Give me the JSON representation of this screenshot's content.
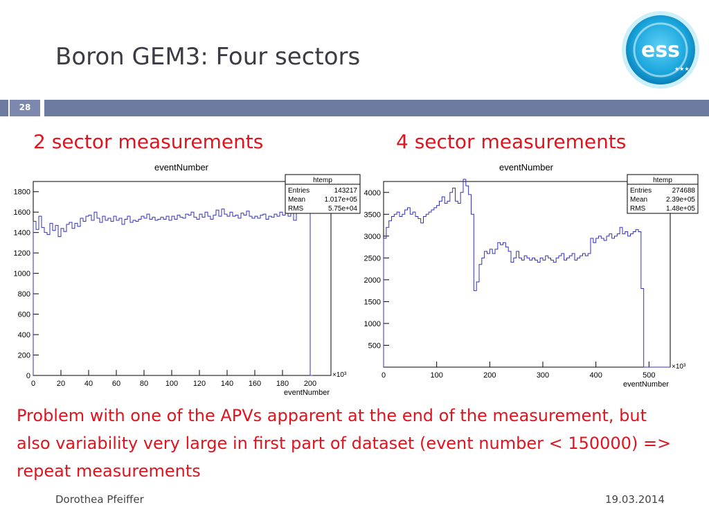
{
  "slide": {
    "title": "Boron GEM3: Four sectors",
    "number": "28",
    "left_heading": "2 sector measurements",
    "right_heading": "4 sector measurements",
    "note": "Problem with one of the APVs apparent at the end of the measurement, but also variability very large in first part of dataset (event number < 150000) => repeat measurements",
    "author": "Dorothea Pfeiffer",
    "date": "19.03.2014",
    "colors": {
      "title": "#3b3b45",
      "heading": "#e0141e",
      "bar": "#6e7ba0",
      "hist": "#3030c0"
    },
    "logo_icon": "ess-logo-icon"
  },
  "chart_data": [
    {
      "type": "histogram",
      "title": "eventNumber",
      "xlabel": "eventNumber",
      "x_multiplier": "×10³",
      "xlim": [
        0,
        215
      ],
      "ylim": [
        0,
        1900
      ],
      "xticks": [
        0,
        20,
        40,
        60,
        80,
        100,
        120,
        140,
        160,
        180,
        200
      ],
      "yticks": [
        0,
        200,
        400,
        600,
        800,
        1000,
        1200,
        1400,
        1600,
        1800
      ],
      "stats": {
        "name": "htemp",
        "entries": "143217",
        "mean": "1.017e+05",
        "rms": "5.75e+04"
      },
      "stats_labels": {
        "entries": "Entries",
        "mean": "Mean",
        "rms": "RMS"
      },
      "bin_width": 2,
      "values": [
        1510,
        1430,
        1560,
        1450,
        1400,
        1380,
        1490,
        1420,
        1470,
        1360,
        1440,
        1410,
        1480,
        1500,
        1440,
        1490,
        1460,
        1540,
        1510,
        1560,
        1570,
        1520,
        1600,
        1540,
        1500,
        1560,
        1520,
        1540,
        1510,
        1560,
        1520,
        1540,
        1480,
        1530,
        1560,
        1500,
        1520,
        1510,
        1530,
        1560,
        1540,
        1580,
        1530,
        1550,
        1520,
        1530,
        1550,
        1530,
        1560,
        1520,
        1560,
        1530,
        1570,
        1550,
        1540,
        1580,
        1570,
        1600,
        1550,
        1530,
        1580,
        1550,
        1600,
        1560,
        1530,
        1570,
        1620,
        1560,
        1630,
        1580,
        1560,
        1600,
        1560,
        1570,
        1540,
        1590,
        1570,
        1610,
        1560,
        1540,
        1560,
        1540,
        1570,
        1580,
        1530,
        1560,
        1550,
        1580,
        1560,
        1600,
        1570,
        1630,
        1560,
        1600,
        1520,
        1600,
        1660,
        1630,
        1590,
        1700,
        0
      ]
    },
    {
      "type": "histogram",
      "title": "eventNumber",
      "xlabel": "eventNumber",
      "x_multiplier": "×10³",
      "xlim": [
        0,
        540
      ],
      "ylim": [
        0,
        4250
      ],
      "xticks": [
        0,
        100,
        200,
        300,
        400,
        500
      ],
      "yticks": [
        500,
        1000,
        1500,
        2000,
        2500,
        3000,
        3500,
        4000
      ],
      "stats": {
        "name": "htemp",
        "entries": "274688",
        "mean": "2.39e+05",
        "rms": "1.48e+05"
      },
      "stats_labels": {
        "entries": "Entries",
        "mean": "Mean",
        "rms": "RMS"
      },
      "bin_width": 5,
      "values": [
        2950,
        3200,
        3350,
        3450,
        3500,
        3550,
        3450,
        3500,
        3600,
        3650,
        3500,
        3550,
        3450,
        3400,
        3300,
        3450,
        3500,
        3550,
        3600,
        3650,
        3700,
        3800,
        3900,
        3750,
        3800,
        4000,
        4100,
        3800,
        3750,
        4000,
        4300,
        4150,
        3950,
        3500,
        1750,
        1950,
        2350,
        2500,
        2650,
        2600,
        2700,
        2600,
        2700,
        2850,
        2800,
        2850,
        2750,
        2650,
        2400,
        2500,
        2650,
        2500,
        2450,
        2550,
        2500,
        2450,
        2500,
        2450,
        2400,
        2500,
        2450,
        2550,
        2500,
        2450,
        2400,
        2500,
        2550,
        2600,
        2450,
        2500,
        2550,
        2600,
        2450,
        2500,
        2550,
        2600,
        2550,
        2600,
        2950,
        2850,
        2950,
        3000,
        2950,
        2900,
        3000,
        3050,
        2950,
        3000,
        3050,
        3200,
        3050,
        3100,
        3000,
        3050,
        3100,
        3150,
        3100,
        1800,
        0,
        0,
        0,
        0,
        0,
        0,
        0,
        0,
        0,
        0
      ]
    }
  ]
}
